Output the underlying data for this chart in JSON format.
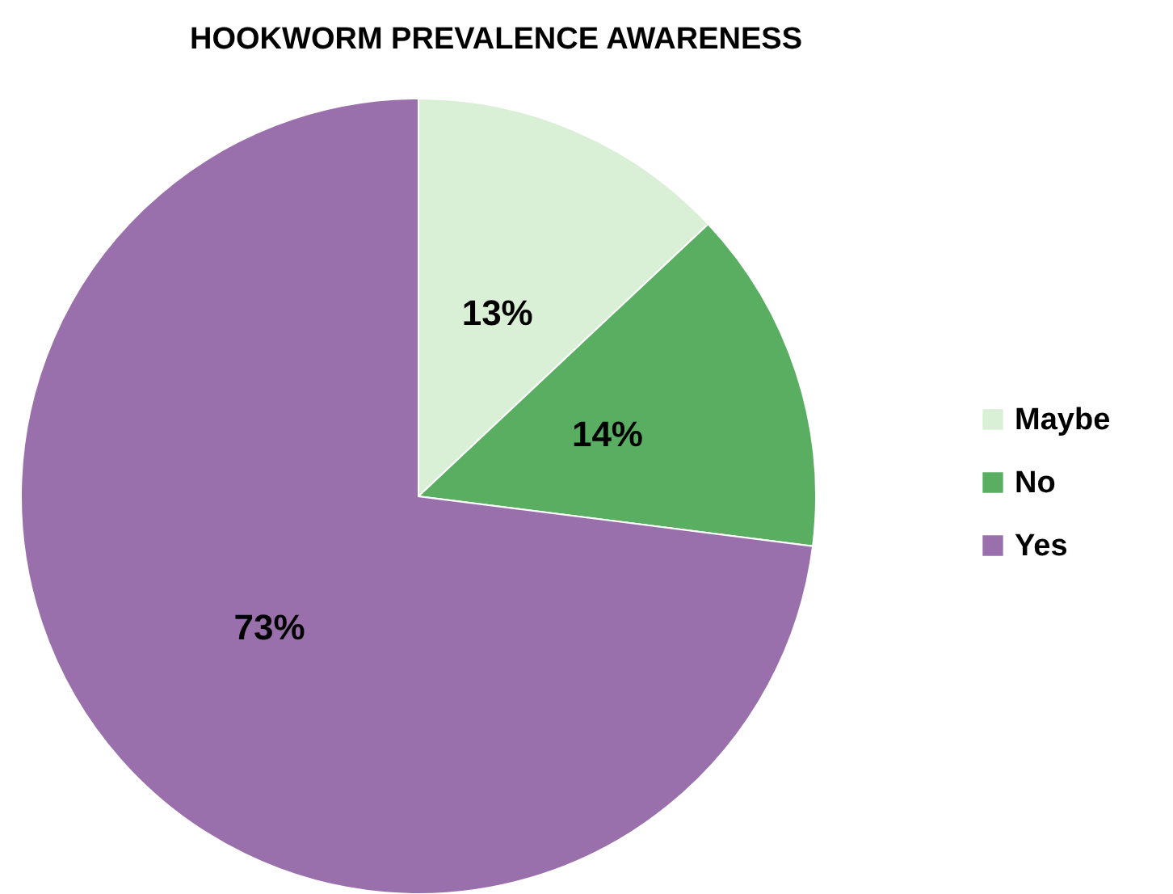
{
  "chart_data": {
    "type": "pie",
    "title": "HOOKWORM PREVALENCE AWARENESS",
    "categories": [
      "Maybe",
      "No",
      "Yes"
    ],
    "values": [
      13,
      14,
      73
    ],
    "value_labels": [
      "13%",
      "14%",
      "73%"
    ],
    "colors": [
      "#d9efd6",
      "#5aae61",
      "#9970ab"
    ],
    "legend": "right"
  }
}
